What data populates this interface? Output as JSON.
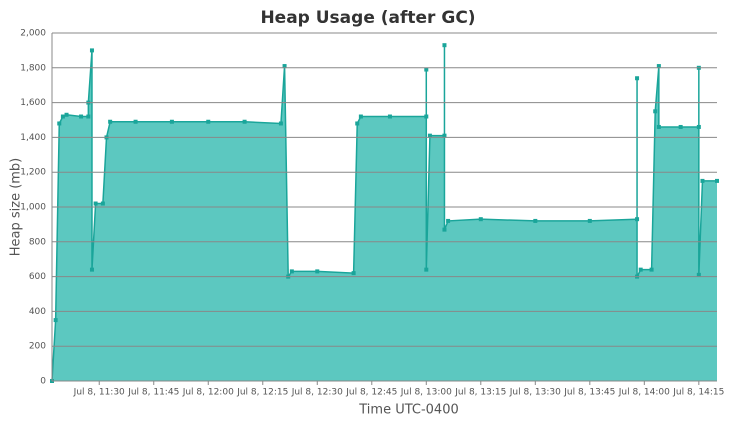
{
  "chart_data": {
    "type": "area",
    "title": "Heap Usage (after GC)",
    "x_label": "Time UTC-0400",
    "y_label": "Heap size (mb)",
    "x": [
      "Jul 8, 11:17",
      "Jul 8, 11:18",
      "Jul 8, 11:19",
      "Jul 8, 11:20",
      "Jul 8, 11:21",
      "Jul 8, 11:25",
      "Jul 8, 11:27",
      "Jul 8, 11:27",
      "Jul 8, 11:28",
      "Jul 8, 11:28",
      "Jul 8, 11:29",
      "Jul 8, 11:31",
      "Jul 8, 11:32",
      "Jul 8, 11:33",
      "Jul 8, 11:40",
      "Jul 8, 11:50",
      "Jul 8, 12:00",
      "Jul 8, 12:10",
      "Jul 8, 12:20",
      "Jul 8, 12:21",
      "Jul 8, 12:22",
      "Jul 8, 12:23",
      "Jul 8, 12:30",
      "Jul 8, 12:40",
      "Jul 8, 12:41",
      "Jul 8, 12:42",
      "Jul 8, 12:50",
      "Jul 8, 13:00",
      "Jul 8, 13:00",
      "Jul 8, 13:00",
      "Jul 8, 13:01",
      "Jul 8, 13:05",
      "Jul 8, 13:05",
      "Jul 8, 13:05",
      "Jul 8, 13:06",
      "Jul 8, 13:15",
      "Jul 8, 13:30",
      "Jul 8, 13:45",
      "Jul 8, 13:58",
      "Jul 8, 13:58",
      "Jul 8, 13:58",
      "Jul 8, 13:59",
      "Jul 8, 14:02",
      "Jul 8, 14:03",
      "Jul 8, 14:04",
      "Jul 8, 14:04",
      "Jul 8, 14:10",
      "Jul 8, 14:15",
      "Jul 8, 14:15",
      "Jul 8, 14:15",
      "Jul 8, 14:16",
      "Jul 8, 14:20"
    ],
    "values": [
      0,
      350,
      1480,
      1520,
      1530,
      1520,
      1520,
      1600,
      1900,
      640,
      1020,
      1020,
      1400,
      1490,
      1490,
      1490,
      1490,
      1490,
      1480,
      1810,
      600,
      630,
      630,
      620,
      1480,
      1520,
      1520,
      1520,
      1790,
      640,
      1410,
      1410,
      1930,
      870,
      920,
      930,
      920,
      920,
      930,
      1740,
      600,
      640,
      640,
      1550,
      1810,
      1460,
      1460,
      1460,
      1800,
      610,
      1150,
      1150
    ],
    "xlim": [
      "Jul 8, 11:17",
      "Jul 8, 14:20"
    ],
    "xticks": [
      "Jul 8, 11:30",
      "Jul 8, 11:45",
      "Jul 8, 12:00",
      "Jul 8, 12:15",
      "Jul 8, 12:30",
      "Jul 8, 12:45",
      "Jul 8, 13:00",
      "Jul 8, 13:15",
      "Jul 8, 13:30",
      "Jul 8, 13:45",
      "Jul 8, 14:00",
      "Jul 8, 14:15"
    ],
    "ylim": [
      0,
      2000
    ],
    "yticks": [
      0,
      200,
      400,
      600,
      800,
      {
        "value": 1000,
        "label": "1,000"
      },
      {
        "value": 1200,
        "label": "1,200"
      },
      {
        "value": 1400,
        "label": "1,400"
      },
      {
        "value": 1600,
        "label": "1,600"
      },
      {
        "value": 1800,
        "label": "1,800"
      },
      {
        "value": 2000,
        "label": "2,000"
      }
    ],
    "color": "#1aa59a",
    "fill": "#5cc8c0",
    "grid": true
  }
}
